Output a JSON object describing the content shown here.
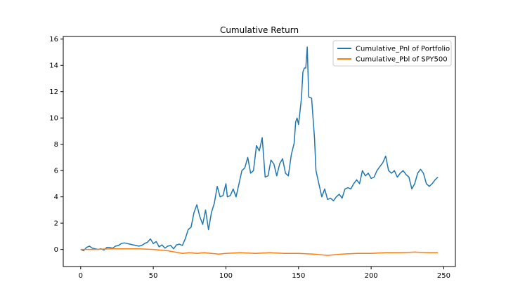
{
  "chart_data": {
    "type": "line",
    "title": "Cumulative Return",
    "xlabel": "",
    "ylabel": "",
    "xlim": [
      -12,
      258
    ],
    "ylim": [
      -1.3,
      16.2
    ],
    "xticks": [
      0,
      50,
      100,
      150,
      200,
      250
    ],
    "yticks": [
      0,
      2,
      4,
      6,
      8,
      10,
      12,
      14,
      16
    ],
    "grid": false,
    "legend_position": "top-right",
    "series": [
      {
        "name": "Cumulative_Pnl of Portfolio",
        "color": "#1f77b4",
        "points": [
          [
            0,
            0.0
          ],
          [
            2,
            -0.1
          ],
          [
            4,
            0.15
          ],
          [
            6,
            0.25
          ],
          [
            8,
            0.1
          ],
          [
            10,
            0.05
          ],
          [
            12,
            0.0
          ],
          [
            14,
            0.05
          ],
          [
            16,
            -0.05
          ],
          [
            18,
            0.15
          ],
          [
            20,
            0.15
          ],
          [
            22,
            0.1
          ],
          [
            24,
            0.25
          ],
          [
            26,
            0.3
          ],
          [
            28,
            0.45
          ],
          [
            30,
            0.5
          ],
          [
            32,
            0.45
          ],
          [
            34,
            0.4
          ],
          [
            36,
            0.35
          ],
          [
            38,
            0.3
          ],
          [
            40,
            0.25
          ],
          [
            42,
            0.3
          ],
          [
            44,
            0.45
          ],
          [
            46,
            0.55
          ],
          [
            48,
            0.8
          ],
          [
            50,
            0.45
          ],
          [
            52,
            0.6
          ],
          [
            54,
            0.2
          ],
          [
            56,
            0.35
          ],
          [
            58,
            0.1
          ],
          [
            60,
            0.25
          ],
          [
            62,
            0.3
          ],
          [
            64,
            0.05
          ],
          [
            66,
            0.35
          ],
          [
            68,
            0.4
          ],
          [
            70,
            0.3
          ],
          [
            72,
            0.8
          ],
          [
            74,
            1.5
          ],
          [
            76,
            1.7
          ],
          [
            78,
            2.8
          ],
          [
            80,
            3.4
          ],
          [
            82,
            2.5
          ],
          [
            84,
            1.9
          ],
          [
            86,
            3.0
          ],
          [
            88,
            1.5
          ],
          [
            90,
            2.8
          ],
          [
            92,
            3.5
          ],
          [
            94,
            4.8
          ],
          [
            96,
            4.0
          ],
          [
            98,
            4.1
          ],
          [
            100,
            5.0
          ],
          [
            101,
            4.0
          ],
          [
            103,
            4.1
          ],
          [
            105,
            4.6
          ],
          [
            107,
            4.0
          ],
          [
            109,
            5.0
          ],
          [
            111,
            6.0
          ],
          [
            113,
            6.2
          ],
          [
            115,
            7.0
          ],
          [
            117,
            5.8
          ],
          [
            119,
            6.0
          ],
          [
            121,
            7.9
          ],
          [
            123,
            7.5
          ],
          [
            125,
            8.5
          ],
          [
            127,
            5.5
          ],
          [
            129,
            5.6
          ],
          [
            131,
            6.8
          ],
          [
            133,
            6.5
          ],
          [
            135,
            5.6
          ],
          [
            137,
            6.5
          ],
          [
            139,
            6.9
          ],
          [
            141,
            5.8
          ],
          [
            143,
            5.6
          ],
          [
            145,
            7.2
          ],
          [
            147,
            8.1
          ],
          [
            148,
            9.7
          ],
          [
            149,
            10.0
          ],
          [
            150,
            9.5
          ],
          [
            151,
            10.5
          ],
          [
            152,
            11.5
          ],
          [
            153,
            13.5
          ],
          [
            154,
            13.8
          ],
          [
            155,
            13.8
          ],
          [
            156,
            15.4
          ],
          [
            157,
            11.6
          ],
          [
            159,
            11.5
          ],
          [
            161,
            8.5
          ],
          [
            162,
            6.0
          ],
          [
            164,
            5.0
          ],
          [
            166,
            4.0
          ],
          [
            168,
            4.6
          ],
          [
            170,
            3.8
          ],
          [
            172,
            3.9
          ],
          [
            174,
            3.7
          ],
          [
            176,
            4.0
          ],
          [
            178,
            4.2
          ],
          [
            180,
            3.9
          ],
          [
            182,
            4.6
          ],
          [
            184,
            4.7
          ],
          [
            186,
            4.6
          ],
          [
            188,
            5.0
          ],
          [
            190,
            5.3
          ],
          [
            192,
            5.0
          ],
          [
            194,
            6.0
          ],
          [
            196,
            5.6
          ],
          [
            198,
            5.8
          ],
          [
            200,
            5.4
          ],
          [
            202,
            5.5
          ],
          [
            204,
            6.0
          ],
          [
            206,
            6.3
          ],
          [
            208,
            6.6
          ],
          [
            210,
            7.1
          ],
          [
            212,
            6.0
          ],
          [
            214,
            5.8
          ],
          [
            216,
            6.0
          ],
          [
            218,
            5.5
          ],
          [
            220,
            5.8
          ],
          [
            222,
            6.0
          ],
          [
            224,
            5.7
          ],
          [
            226,
            5.5
          ],
          [
            228,
            4.6
          ],
          [
            230,
            5.0
          ],
          [
            232,
            5.8
          ],
          [
            234,
            6.1
          ],
          [
            236,
            5.8
          ],
          [
            238,
            5.0
          ],
          [
            240,
            4.8
          ],
          [
            242,
            5.0
          ],
          [
            244,
            5.3
          ],
          [
            246,
            5.5
          ]
        ]
      },
      {
        "name": "Cumulative_Pbl of SPY500",
        "color": "#ff7f0e",
        "points": [
          [
            0,
            0.0
          ],
          [
            10,
            0.0
          ],
          [
            20,
            0.05
          ],
          [
            30,
            0.05
          ],
          [
            40,
            0.05
          ],
          [
            50,
            0.0
          ],
          [
            55,
            -0.05
          ],
          [
            60,
            -0.1
          ],
          [
            65,
            -0.2
          ],
          [
            70,
            -0.3
          ],
          [
            75,
            -0.25
          ],
          [
            80,
            -0.3
          ],
          [
            85,
            -0.25
          ],
          [
            90,
            -0.3
          ],
          [
            95,
            -0.35
          ],
          [
            100,
            -0.3
          ],
          [
            110,
            -0.25
          ],
          [
            120,
            -0.3
          ],
          [
            130,
            -0.25
          ],
          [
            140,
            -0.3
          ],
          [
            150,
            -0.3
          ],
          [
            160,
            -0.35
          ],
          [
            165,
            -0.4
          ],
          [
            170,
            -0.45
          ],
          [
            175,
            -0.4
          ],
          [
            180,
            -0.35
          ],
          [
            190,
            -0.3
          ],
          [
            200,
            -0.3
          ],
          [
            210,
            -0.25
          ],
          [
            220,
            -0.25
          ],
          [
            230,
            -0.2
          ],
          [
            240,
            -0.25
          ],
          [
            246,
            -0.25
          ]
        ]
      }
    ]
  }
}
